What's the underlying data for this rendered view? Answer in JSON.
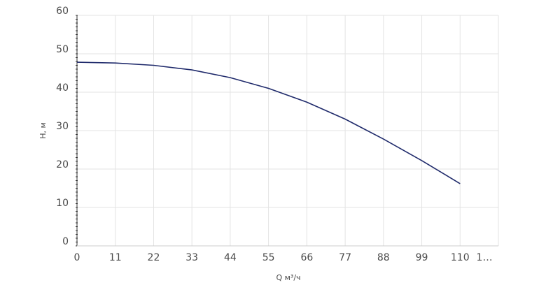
{
  "chart_data": {
    "type": "line",
    "x_label": "Q м³/ч",
    "y_label": "H, м",
    "x": [
      0,
      11,
      22,
      33,
      44,
      55,
      66,
      77,
      88,
      99,
      110
    ],
    "series": [
      {
        "name": "H",
        "color": "#1f2a6b",
        "values": [
          47.8,
          47.6,
          47.0,
          45.8,
          43.8,
          41.0,
          37.4,
          33.0,
          27.8,
          22.2,
          16.2
        ]
      }
    ],
    "xlim": [
      0,
      121
    ],
    "xticks": [
      0,
      11,
      22,
      33,
      44,
      55,
      66,
      77,
      88,
      99,
      110,
      {
        "value": 121,
        "label": "1…"
      }
    ],
    "ylim": [
      0,
      60
    ],
    "yticks": [
      0,
      10,
      20,
      30,
      40,
      50,
      60
    ],
    "grid": true
  }
}
